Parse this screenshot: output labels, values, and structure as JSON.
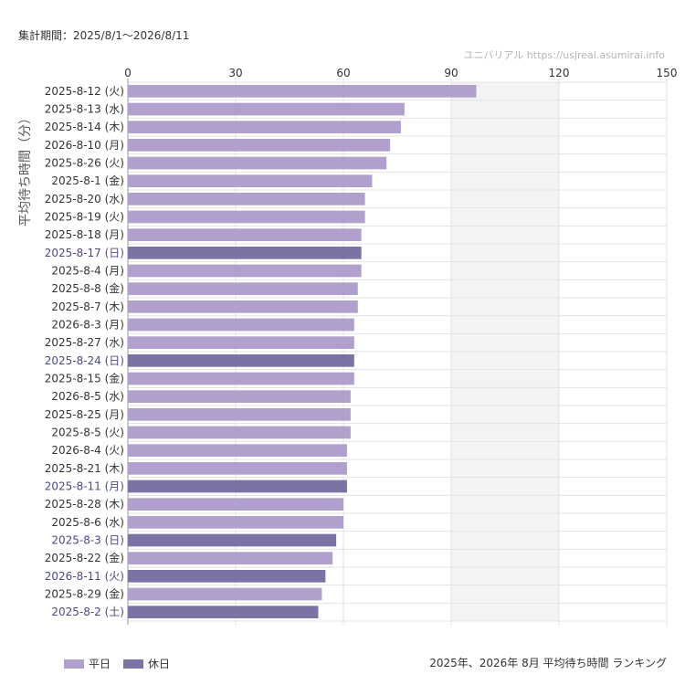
{
  "period_label": "集計期間：2025/8/1〜2026/8/11",
  "watermark": "ユニバリアル https://usjreal.asumirai.info",
  "footer_title": "2025年、2026年 8月 平均待ち時間 ランキング",
  "colors": {
    "weekday": "#b19fcd",
    "holiday": "#7b73a3",
    "holiday_text": "#4b4a8a",
    "shade": "#f3f3f3",
    "grid": "#e3e3e3"
  },
  "legend": [
    {
      "label": "平日",
      "color": "#b19fcd"
    },
    {
      "label": "休日",
      "color": "#7b73a3"
    }
  ],
  "chart_data": {
    "type": "bar",
    "orientation": "horizontal",
    "ylabel": "平均待ち時間（分）",
    "xlim": [
      0,
      150
    ],
    "xticks": [
      "0",
      "30",
      "60",
      "90",
      "120",
      "150"
    ],
    "x_axis_position": "top",
    "grid": true,
    "shaded_x_range": [
      90,
      120
    ],
    "legend_position": "bottom-left",
    "series": [
      {
        "categories": [
          "2025-8-12 (火)",
          "2025-8-13 (水)",
          "2025-8-14 (木)",
          "2026-8-10 (月)",
          "2025-8-26 (火)",
          "2025-8-1 (金)",
          "2025-8-20 (水)",
          "2025-8-19 (火)",
          "2025-8-18 (月)",
          "2025-8-17 (日)",
          "2025-8-4 (月)",
          "2025-8-8 (金)",
          "2025-8-7 (木)",
          "2026-8-3 (月)",
          "2025-8-27 (水)",
          "2025-8-24 (日)",
          "2025-8-15 (金)",
          "2026-8-5 (水)",
          "2025-8-25 (月)",
          "2025-8-5 (火)",
          "2026-8-4 (火)",
          "2025-8-21 (木)",
          "2025-8-11 (月)",
          "2025-8-28 (木)",
          "2025-8-6 (水)",
          "2025-8-3 (日)",
          "2025-8-22 (金)",
          "2026-8-11 (火)",
          "2025-8-29 (金)",
          "2025-8-2 (土)"
        ],
        "values": [
          97,
          77,
          76,
          73,
          72,
          68,
          66,
          66,
          65,
          65,
          65,
          64,
          64,
          63,
          63,
          63,
          63,
          62,
          62,
          62,
          61,
          61,
          61,
          60,
          60,
          58,
          57,
          55,
          54,
          53
        ],
        "holiday": [
          false,
          false,
          false,
          false,
          false,
          false,
          false,
          false,
          false,
          true,
          false,
          false,
          false,
          false,
          false,
          true,
          false,
          false,
          false,
          false,
          false,
          false,
          true,
          false,
          false,
          true,
          false,
          true,
          false,
          true
        ]
      }
    ]
  }
}
